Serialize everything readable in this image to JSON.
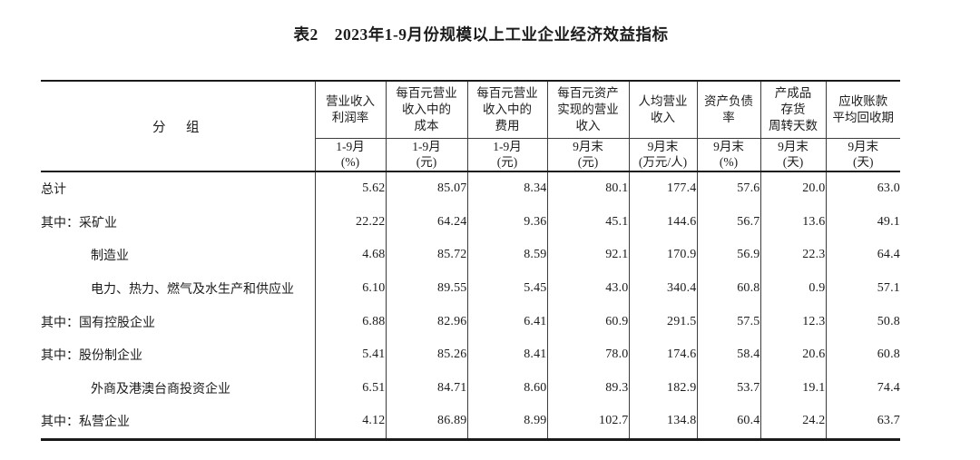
{
  "title": "表2　2023年1-9月份规模以上工业企业经济效益指标",
  "table": {
    "group_header": "分　组",
    "columns": [
      {
        "name": "营业收入\n利润率",
        "period": "1-9月",
        "unit": "(%)"
      },
      {
        "name": "每百元营业\n收入中的\n成本",
        "period": "1-9月",
        "unit": "(元)"
      },
      {
        "name": "每百元营业\n收入中的\n费用",
        "period": "1-9月",
        "unit": "(元)"
      },
      {
        "name": "每百元资产\n实现的营业\n收入",
        "period": "9月末",
        "unit": "(元)"
      },
      {
        "name": "人均营业\n收入",
        "period": "9月末",
        "unit": "(万元/人)"
      },
      {
        "name": "资产负债\n率",
        "period": "9月末",
        "unit": "(%)"
      },
      {
        "name": "产成品\n存货\n周转天数",
        "period": "9月末",
        "unit": "(天)"
      },
      {
        "name": "应收账款\n平均回收期",
        "period": "9月末",
        "unit": "(天)"
      }
    ],
    "rows": [
      {
        "label": "总计",
        "indent": false,
        "values": [
          "5.62",
          "85.07",
          "8.34",
          "80.1",
          "177.4",
          "57.6",
          "20.0",
          "63.0"
        ]
      },
      {
        "label": "其中：采矿业",
        "indent": false,
        "values": [
          "22.22",
          "64.24",
          "9.36",
          "45.1",
          "144.6",
          "56.7",
          "13.6",
          "49.1"
        ]
      },
      {
        "label": "制造业",
        "indent": true,
        "values": [
          "4.68",
          "85.72",
          "8.59",
          "92.1",
          "170.9",
          "56.9",
          "22.3",
          "64.4"
        ]
      },
      {
        "label": "电力、热力、燃气及水生产和供应业",
        "indent": true,
        "values": [
          "6.10",
          "89.55",
          "5.45",
          "43.0",
          "340.4",
          "60.8",
          "0.9",
          "57.1"
        ]
      },
      {
        "label": "其中：国有控股企业",
        "indent": false,
        "values": [
          "6.88",
          "82.96",
          "6.41",
          "60.9",
          "291.5",
          "57.5",
          "12.3",
          "50.8"
        ]
      },
      {
        "label": "其中：股份制企业",
        "indent": false,
        "values": [
          "5.41",
          "85.26",
          "8.41",
          "78.0",
          "174.6",
          "58.4",
          "20.6",
          "60.8"
        ]
      },
      {
        "label": "外商及港澳台商投资企业",
        "indent": true,
        "values": [
          "6.51",
          "84.71",
          "8.60",
          "89.3",
          "182.9",
          "53.7",
          "19.1",
          "74.4"
        ]
      },
      {
        "label": "其中：私营企业",
        "indent": false,
        "values": [
          "4.12",
          "86.89",
          "8.99",
          "102.7",
          "134.8",
          "60.4",
          "24.2",
          "63.7"
        ]
      }
    ]
  }
}
